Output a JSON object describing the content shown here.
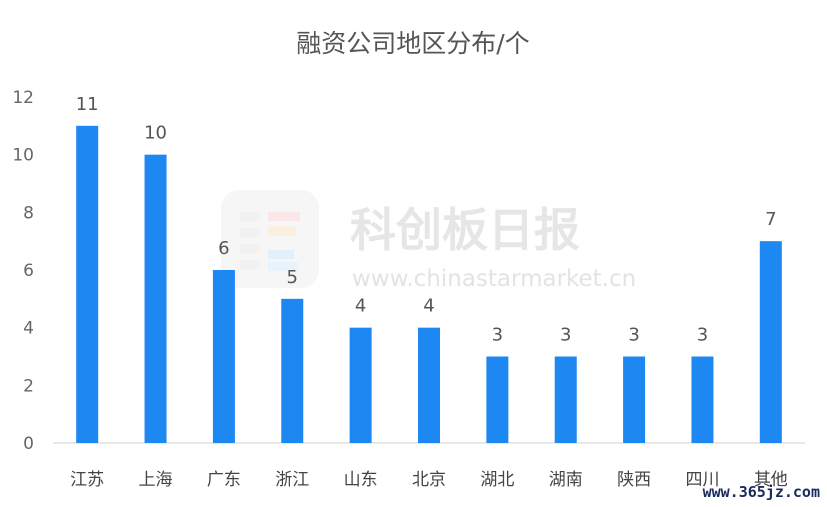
{
  "chart_data": {
    "type": "bar",
    "title": "融资公司地区分布/个",
    "categories": [
      "江苏",
      "上海",
      "广东",
      "浙江",
      "山东",
      "北京",
      "湖北",
      "湖南",
      "陕西",
      "四川",
      "其他"
    ],
    "values": [
      11,
      10,
      6,
      5,
      4,
      4,
      3,
      3,
      3,
      3,
      7
    ],
    "ylim": [
      0,
      12
    ],
    "yticks": [
      0,
      2,
      4,
      6,
      8,
      10,
      12
    ],
    "grid": false,
    "bar_color": "#1e88f2"
  },
  "watermark": {
    "brand_text": "科创板日报",
    "url_text": "www.chinastarmarket.cn"
  },
  "corner_watermark": "www.365jz.com"
}
